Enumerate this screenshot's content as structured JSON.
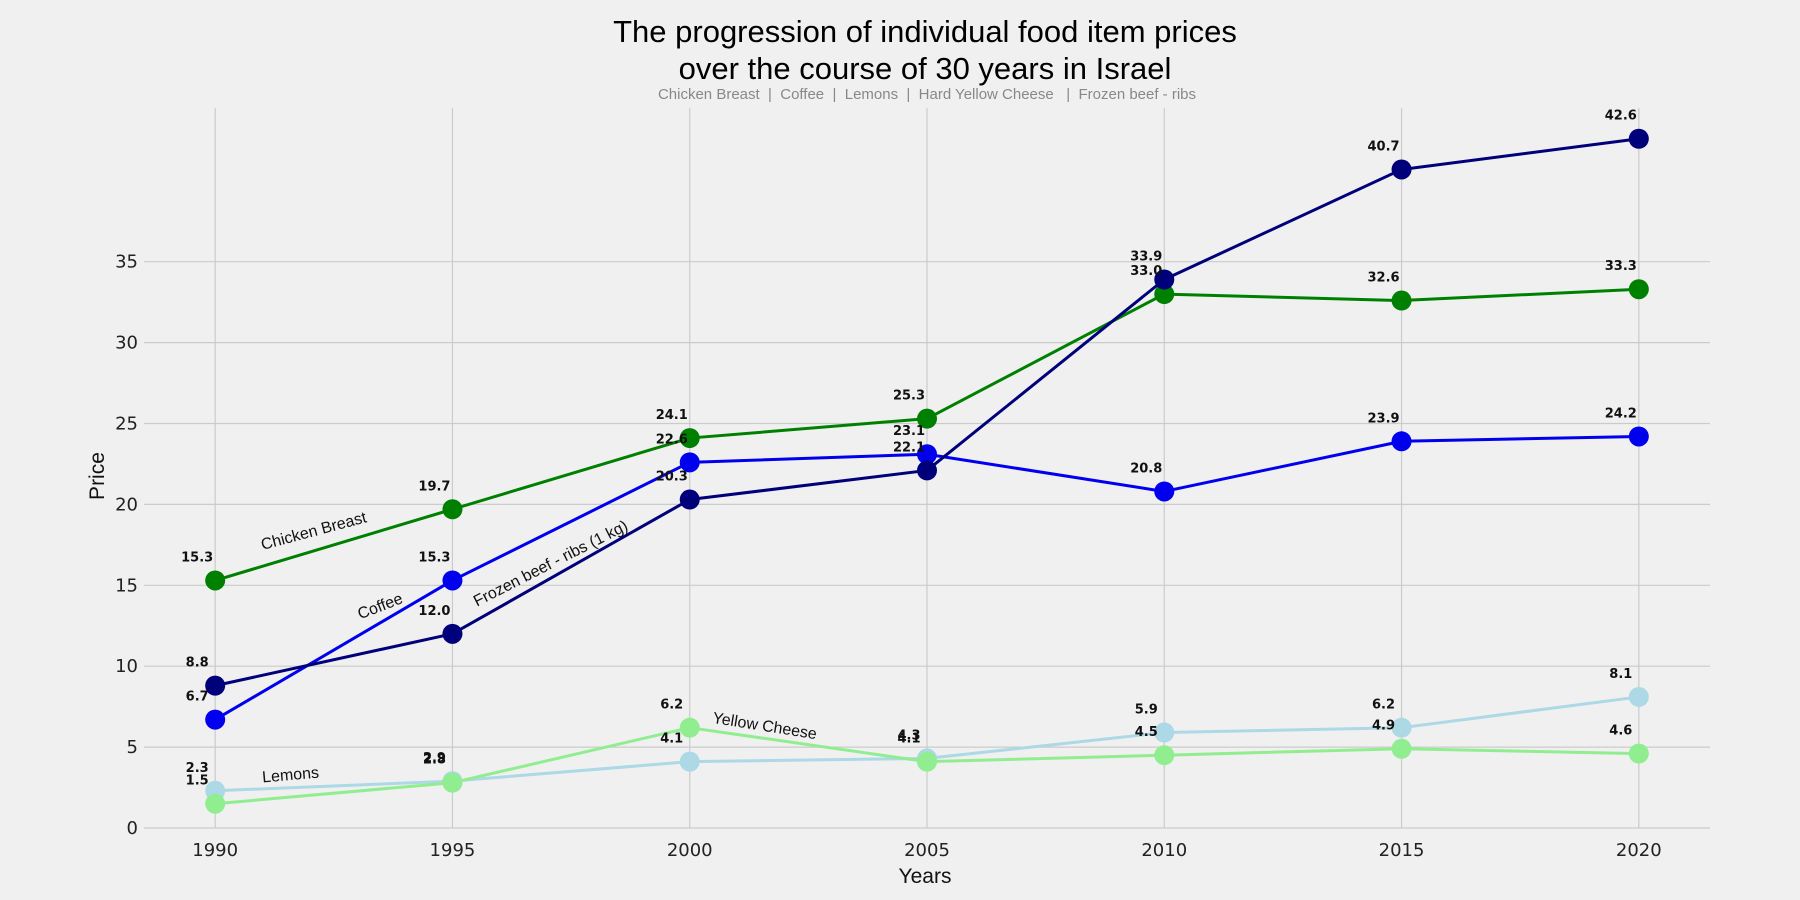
{
  "chart_data": {
    "type": "line",
    "title_lines": [
      "The progression of individual food item prices",
      "over the course of 30 years in Israel"
    ],
    "subtitle": "Chicken Breast  |  Coffee  |  Lemons  |  Hard Yellow Cheese   |  Frozen beef - ribs",
    "xlabel": "Years",
    "ylabel": "Price",
    "x": [
      1990,
      1995,
      2000,
      2005,
      2010,
      2015,
      2020
    ],
    "xlim": [
      1988.5,
      2021.5
    ],
    "ylim": [
      0,
      44.5
    ],
    "yticks": [
      0,
      5,
      10,
      15,
      20,
      25,
      30,
      35
    ],
    "grid": true,
    "series": [
      {
        "name": "Chicken Breast",
        "color": "#008000",
        "values": [
          15.3,
          19.7,
          24.1,
          25.3,
          33.0,
          32.6,
          33.3
        ]
      },
      {
        "name": "Coffee",
        "color": "#0000ee",
        "values": [
          6.7,
          15.3,
          22.6,
          23.1,
          20.8,
          23.9,
          24.2
        ]
      },
      {
        "name": "Frozen beef - ribs (1 kg)",
        "color": "#00007a",
        "values": [
          8.8,
          12.0,
          20.3,
          22.1,
          33.9,
          40.7,
          42.6
        ]
      },
      {
        "name": "Lemons",
        "color": "#add8e6",
        "values": [
          2.3,
          2.9,
          4.1,
          4.3,
          5.9,
          6.2,
          8.1
        ]
      },
      {
        "name": "Yellow Cheese",
        "color": "#90ee90",
        "values": [
          1.5,
          2.8,
          6.2,
          4.1,
          4.5,
          4.9,
          4.6
        ]
      }
    ]
  }
}
